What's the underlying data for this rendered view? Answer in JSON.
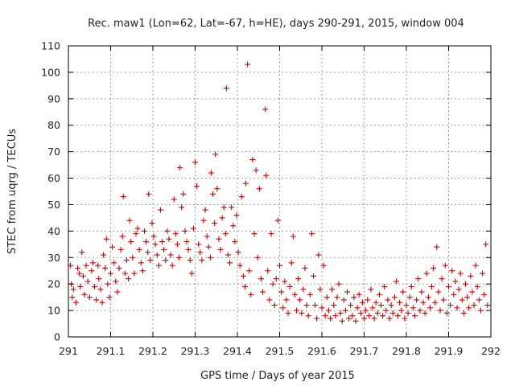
{
  "chart_data": {
    "type": "scatter",
    "title": "Rec. maw1 (Lon=62, Lat=-67, h=HE), days 290-291, 2015, window 004",
    "xlabel": "GPS time / Days of year 2015",
    "ylabel": "STEC from uqrg / TECUs",
    "xlim": [
      291,
      292
    ],
    "ylim": [
      0,
      110
    ],
    "x_ticks": [
      291,
      291.1,
      291.2,
      291.3,
      291.4,
      291.5,
      291.6,
      291.7,
      291.8,
      291.9,
      292
    ],
    "x_tick_labels": [
      "291",
      "291.1",
      "291.2",
      "291.3",
      "291.4",
      "291.5",
      "291.6",
      "291.7",
      "291.8",
      "291.9",
      "292"
    ],
    "y_ticks": [
      0,
      10,
      20,
      30,
      40,
      50,
      60,
      70,
      80,
      90,
      100,
      110
    ],
    "y_tick_labels": [
      "0",
      "10",
      "20",
      "30",
      "40",
      "50",
      "60",
      "70",
      "80",
      "90",
      "100",
      "110"
    ],
    "grid": true,
    "marker": "+",
    "marker_color": "#cc0000",
    "series": [
      {
        "name": "STEC",
        "points": [
          [
            291.005,
            27
          ],
          [
            291.007,
            20
          ],
          [
            291.009,
            15
          ],
          [
            291.012,
            18
          ],
          [
            291.018,
            13
          ],
          [
            291.022,
            26
          ],
          [
            291.026,
            24
          ],
          [
            291.028,
            19
          ],
          [
            291.032,
            32
          ],
          [
            291.035,
            23
          ],
          [
            291.038,
            16
          ],
          [
            291.042,
            27
          ],
          [
            291.046,
            21
          ],
          [
            291.05,
            15
          ],
          [
            291.055,
            25
          ],
          [
            291.058,
            28
          ],
          [
            291.062,
            19
          ],
          [
            291.066,
            14
          ],
          [
            291.07,
            27
          ],
          [
            291.072,
            22
          ],
          [
            291.076,
            18
          ],
          [
            291.08,
            13
          ],
          [
            291.083,
            31
          ],
          [
            291.087,
            26
          ],
          [
            291.09,
            37
          ],
          [
            291.093,
            20
          ],
          [
            291.097,
            15
          ],
          [
            291.1,
            24
          ],
          [
            291.104,
            34
          ],
          [
            291.108,
            28
          ],
          [
            291.112,
            21
          ],
          [
            291.116,
            17
          ],
          [
            291.12,
            26
          ],
          [
            291.124,
            33
          ],
          [
            291.128,
            38
          ],
          [
            291.13,
            53
          ],
          [
            291.134,
            24
          ],
          [
            291.138,
            29
          ],
          [
            291.142,
            22
          ],
          [
            291.145,
            44
          ],
          [
            291.148,
            36
          ],
          [
            291.152,
            30
          ],
          [
            291.156,
            24
          ],
          [
            291.16,
            39
          ],
          [
            291.164,
            41
          ],
          [
            291.168,
            33
          ],
          [
            291.172,
            28
          ],
          [
            291.176,
            25
          ],
          [
            291.18,
            40
          ],
          [
            291.184,
            36
          ],
          [
            291.188,
            32
          ],
          [
            291.19,
            54
          ],
          [
            291.194,
            29
          ],
          [
            291.198,
            43
          ],
          [
            291.202,
            38
          ],
          [
            291.206,
            35
          ],
          [
            291.21,
            31
          ],
          [
            291.214,
            27
          ],
          [
            291.218,
            48
          ],
          [
            291.222,
            36
          ],
          [
            291.226,
            33
          ],
          [
            291.23,
            29
          ],
          [
            291.234,
            40
          ],
          [
            291.238,
            37
          ],
          [
            291.242,
            31
          ],
          [
            291.246,
            27
          ],
          [
            291.25,
            52
          ],
          [
            291.254,
            39
          ],
          [
            291.258,
            35
          ],
          [
            291.262,
            30
          ],
          [
            291.264,
            64
          ],
          [
            291.268,
            49
          ],
          [
            291.272,
            54
          ],
          [
            291.276,
            40
          ],
          [
            291.28,
            36
          ],
          [
            291.284,
            33
          ],
          [
            291.288,
            29
          ],
          [
            291.292,
            24
          ],
          [
            291.296,
            41
          ],
          [
            291.3,
            66
          ],
          [
            291.304,
            57
          ],
          [
            291.308,
            35
          ],
          [
            291.312,
            32
          ],
          [
            291.316,
            29
          ],
          [
            291.32,
            44
          ],
          [
            291.324,
            48
          ],
          [
            291.328,
            38
          ],
          [
            291.332,
            34
          ],
          [
            291.336,
            30
          ],
          [
            291.338,
            62
          ],
          [
            291.342,
            54
          ],
          [
            291.346,
            43
          ],
          [
            291.348,
            69
          ],
          [
            291.352,
            56
          ],
          [
            291.356,
            37
          ],
          [
            291.36,
            33
          ],
          [
            291.364,
            45
          ],
          [
            291.368,
            49
          ],
          [
            291.372,
            39
          ],
          [
            291.374,
            94
          ],
          [
            291.378,
            31
          ],
          [
            291.382,
            28
          ],
          [
            291.386,
            49
          ],
          [
            291.39,
            42
          ],
          [
            291.394,
            36
          ],
          [
            291.398,
            46
          ],
          [
            291.402,
            32
          ],
          [
            291.406,
            27
          ],
          [
            291.41,
            53
          ],
          [
            291.414,
            23
          ],
          [
            291.418,
            19
          ],
          [
            291.42,
            58
          ],
          [
            291.424,
            103
          ],
          [
            291.428,
            25
          ],
          [
            291.432,
            16
          ],
          [
            291.436,
            67
          ],
          [
            291.44,
            39
          ],
          [
            291.444,
            63
          ],
          [
            291.448,
            30
          ],
          [
            291.452,
            56
          ],
          [
            291.456,
            22
          ],
          [
            291.46,
            17
          ],
          [
            291.466,
            86
          ],
          [
            291.468,
            61
          ],
          [
            291.472,
            25
          ],
          [
            291.476,
            14
          ],
          [
            291.48,
            39
          ],
          [
            291.484,
            20
          ],
          [
            291.488,
            12
          ],
          [
            291.492,
            22
          ],
          [
            291.496,
            44
          ],
          [
            291.5,
            27
          ],
          [
            291.504,
            17
          ],
          [
            291.508,
            11
          ],
          [
            291.512,
            21
          ],
          [
            291.516,
            14
          ],
          [
            291.52,
            9
          ],
          [
            291.524,
            19
          ],
          [
            291.528,
            28
          ],
          [
            291.532,
            38
          ],
          [
            291.536,
            16
          ],
          [
            291.54,
            10
          ],
          [
            291.544,
            22
          ],
          [
            291.548,
            14
          ],
          [
            291.552,
            9
          ],
          [
            291.556,
            18
          ],
          [
            291.56,
            26
          ],
          [
            291.564,
            12
          ],
          [
            291.568,
            8
          ],
          [
            291.572,
            16
          ],
          [
            291.576,
            39
          ],
          [
            291.58,
            23
          ],
          [
            291.584,
            12
          ],
          [
            291.588,
            7
          ],
          [
            291.592,
            31
          ],
          [
            291.596,
            18
          ],
          [
            291.6,
            11
          ],
          [
            291.604,
            27
          ],
          [
            291.608,
            8
          ],
          [
            291.612,
            15
          ],
          [
            291.616,
            10
          ],
          [
            291.62,
            7
          ],
          [
            291.624,
            18
          ],
          [
            291.628,
            12
          ],
          [
            291.632,
            8
          ],
          [
            291.636,
            15
          ],
          [
            291.64,
            20
          ],
          [
            291.644,
            9
          ],
          [
            291.648,
            6
          ],
          [
            291.652,
            14
          ],
          [
            291.656,
            10
          ],
          [
            291.66,
            17
          ],
          [
            291.664,
            7
          ],
          [
            291.668,
            12
          ],
          [
            291.672,
            8
          ],
          [
            291.676,
            15
          ],
          [
            291.68,
            6
          ],
          [
            291.684,
            11
          ],
          [
            291.688,
            16
          ],
          [
            291.692,
            9
          ],
          [
            291.696,
            13
          ],
          [
            291.7,
            7
          ],
          [
            291.704,
            10
          ],
          [
            291.708,
            14
          ],
          [
            291.712,
            8
          ],
          [
            291.716,
            18
          ],
          [
            291.72,
            11
          ],
          [
            291.724,
            7
          ],
          [
            291.728,
            13
          ],
          [
            291.732,
            9
          ],
          [
            291.736,
            16
          ],
          [
            291.74,
            12
          ],
          [
            291.744,
            8
          ],
          [
            291.748,
            19
          ],
          [
            291.752,
            10
          ],
          [
            291.756,
            14
          ],
          [
            291.76,
            7
          ],
          [
            291.764,
            12
          ],
          [
            291.768,
            9
          ],
          [
            291.772,
            15
          ],
          [
            291.776,
            21
          ],
          [
            291.78,
            8
          ],
          [
            291.784,
            13
          ],
          [
            291.788,
            10
          ],
          [
            291.792,
            17
          ],
          [
            291.796,
            7
          ],
          [
            291.8,
            12
          ],
          [
            291.804,
            9
          ],
          [
            291.808,
            15
          ],
          [
            291.812,
            19
          ],
          [
            291.816,
            11
          ],
          [
            291.82,
            8
          ],
          [
            291.824,
            14
          ],
          [
            291.828,
            22
          ],
          [
            291.832,
            10
          ],
          [
            291.836,
            17
          ],
          [
            291.84,
            13
          ],
          [
            291.844,
            9
          ],
          [
            291.848,
            24
          ],
          [
            291.852,
            15
          ],
          [
            291.856,
            11
          ],
          [
            291.86,
            19
          ],
          [
            291.864,
            26
          ],
          [
            291.868,
            13
          ],
          [
            291.872,
            34
          ],
          [
            291.876,
            17
          ],
          [
            291.88,
            10
          ],
          [
            291.884,
            22
          ],
          [
            291.888,
            14
          ],
          [
            291.892,
            27
          ],
          [
            291.896,
            9
          ],
          [
            291.9,
            19
          ],
          [
            291.904,
            12
          ],
          [
            291.908,
            25
          ],
          [
            291.912,
            16
          ],
          [
            291.916,
            21
          ],
          [
            291.92,
            11
          ],
          [
            291.924,
            18
          ],
          [
            291.928,
            24
          ],
          [
            291.932,
            14
          ],
          [
            291.936,
            9
          ],
          [
            291.94,
            20
          ],
          [
            291.944,
            15
          ],
          [
            291.948,
            11
          ],
          [
            291.952,
            23
          ],
          [
            291.956,
            17
          ],
          [
            291.96,
            12
          ],
          [
            291.964,
            27
          ],
          [
            291.968,
            19
          ],
          [
            291.972,
            14
          ],
          [
            291.976,
            10
          ],
          [
            291.98,
            24
          ],
          [
            291.984,
            16
          ],
          [
            291.988,
            35
          ],
          [
            291.992,
            12
          ]
        ]
      }
    ]
  }
}
